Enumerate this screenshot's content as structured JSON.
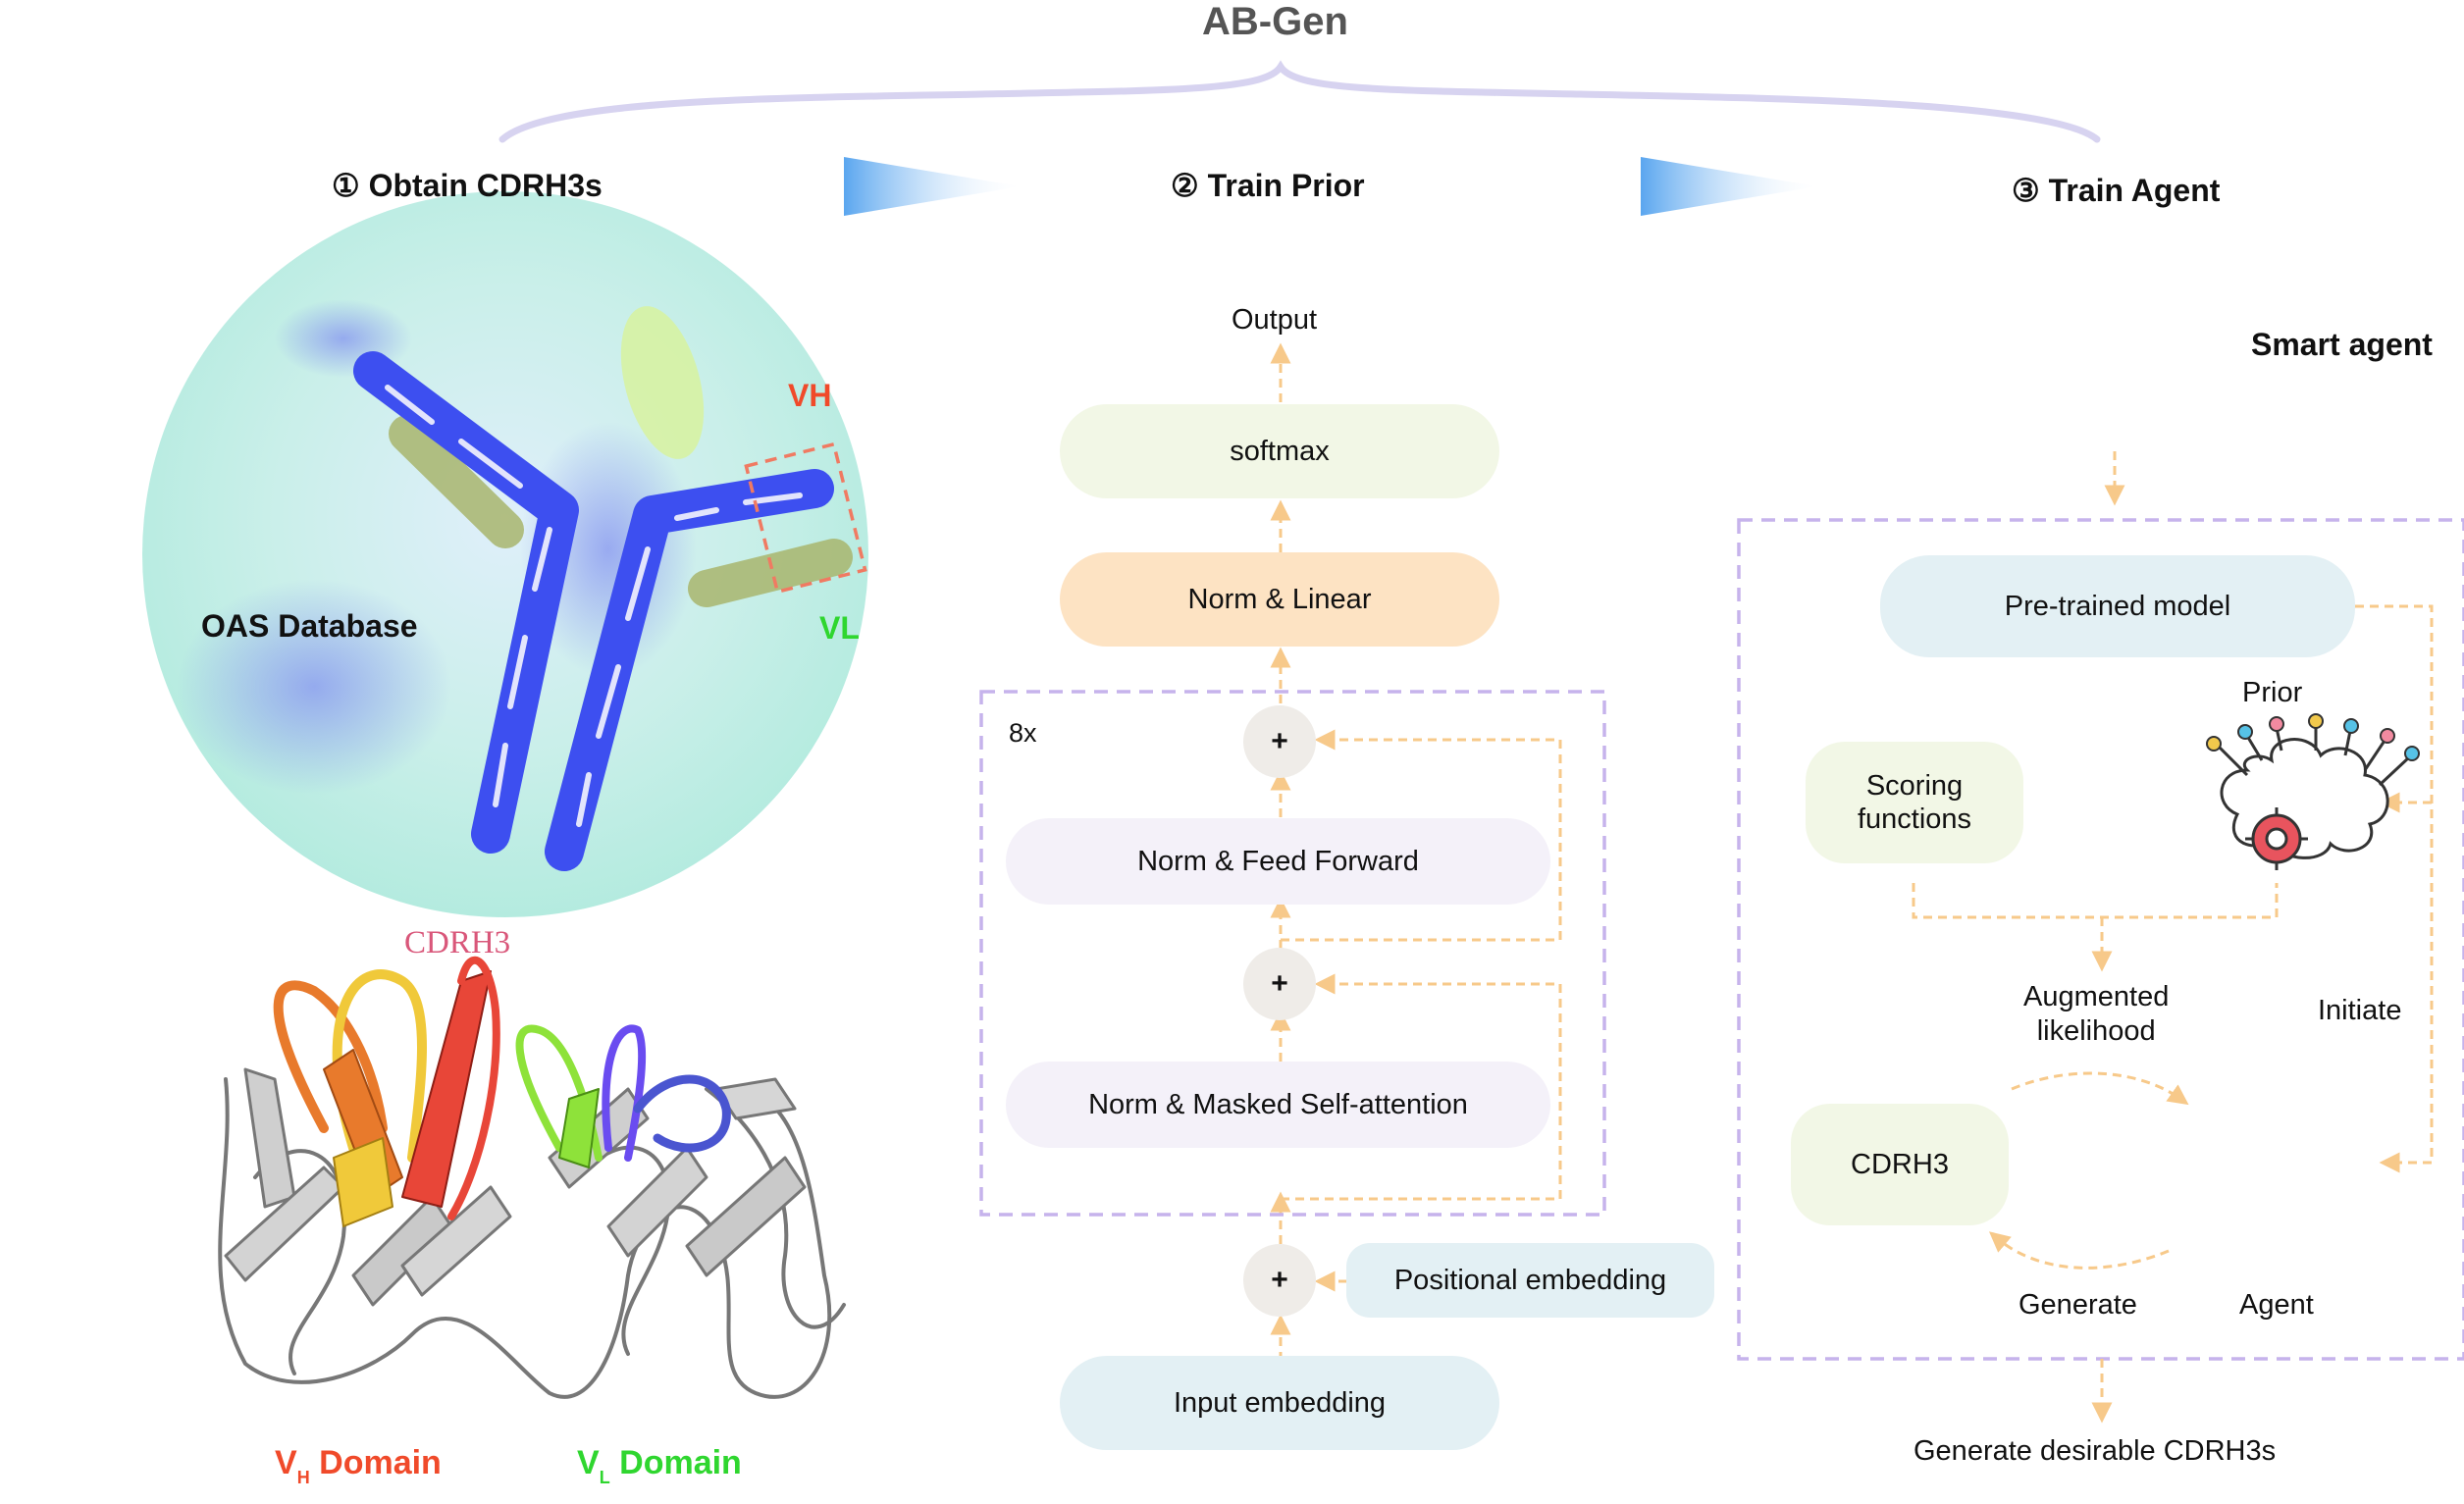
{
  "title": "AB-Gen",
  "steps": [
    {
      "label": "① Obtain CDRH3s"
    },
    {
      "label": "② Train Prior"
    },
    {
      "label": "③ Train Agent"
    }
  ],
  "panel1": {
    "oas_label": "OAS Database",
    "vh_label": "VH",
    "vl_label": "VL",
    "cdrh3_label": "CDRH3",
    "vh_domain": {
      "main": "V",
      "sub": "H",
      "rest": " Domain"
    },
    "vl_domain": {
      "main": "V",
      "sub": "L",
      "rest": " Domain"
    },
    "colors": {
      "antibody": "#3d4ff0",
      "vh": "#f04a2a",
      "vl": "#2fd62f",
      "cdrh3": "#d9577a"
    }
  },
  "panel2": {
    "output": "Output",
    "softmax": "softmax",
    "norm_linear": "Norm & Linear",
    "repeat": "8x",
    "feed_forward": "Norm & Feed Forward",
    "self_attention": "Norm & Masked Self-attention",
    "positional": "Positional embedding",
    "input": "Input embedding",
    "plus": "+",
    "colors": {
      "softmax": "#f2f7e6",
      "norm_linear": "#fde3c3",
      "block": "#f4f1f9",
      "embedding": "#e3f0f4",
      "arrow": "#f7c98a",
      "dash_box": "#c6b3ec"
    }
  },
  "panel3": {
    "smart_agent": "Smart agent",
    "pretrained": "Pre-trained model",
    "prior": "Prior",
    "scoring": "Scoring\nfunctions",
    "augmented": "Augmented\nlikelihood",
    "initiate": "Initiate",
    "cdrh3": "CDRH3",
    "generate": "Generate",
    "agent": "Agent",
    "final": "Generate desirable CDRH3s",
    "icons": [
      "brain-gear-icon"
    ]
  }
}
